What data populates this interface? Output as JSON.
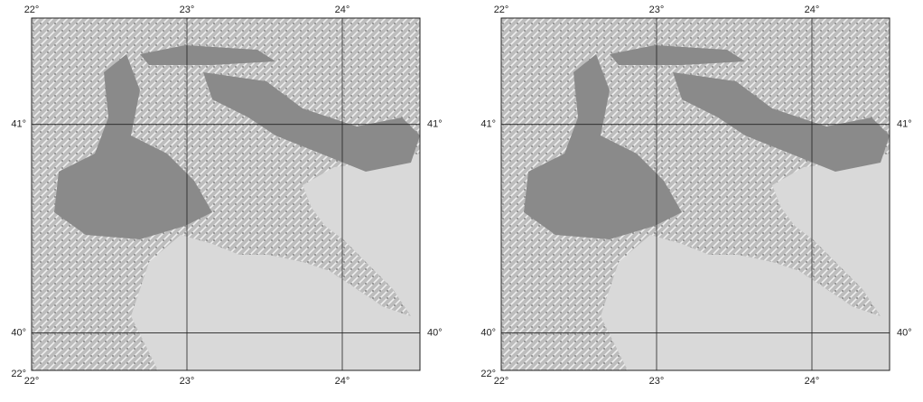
{
  "maps": [
    {
      "lonlim": [
        22,
        24.5
      ],
      "latlim": [
        39.82,
        41.51
      ],
      "lon_ticks": [
        {
          "value": 22,
          "label": "22°"
        },
        {
          "value": 23,
          "label": "23°"
        },
        {
          "value": 24,
          "label": "24°"
        }
      ],
      "lat_ticks": [
        {
          "value": 41,
          "label": "41°"
        },
        {
          "value": 40,
          "label": "40°"
        }
      ],
      "corner_label": "22°"
    },
    {
      "lonlim": [
        22,
        24.5
      ],
      "latlim": [
        39.82,
        41.51
      ],
      "lon_ticks": [
        {
          "value": 22,
          "label": "22°"
        },
        {
          "value": 23,
          "label": "23°"
        },
        {
          "value": 24,
          "label": "24°"
        }
      ],
      "lat_ticks": [
        {
          "value": 41,
          "label": "41°"
        },
        {
          "value": 40,
          "label": "40°"
        }
      ],
      "corner_label": "22°"
    }
  ]
}
